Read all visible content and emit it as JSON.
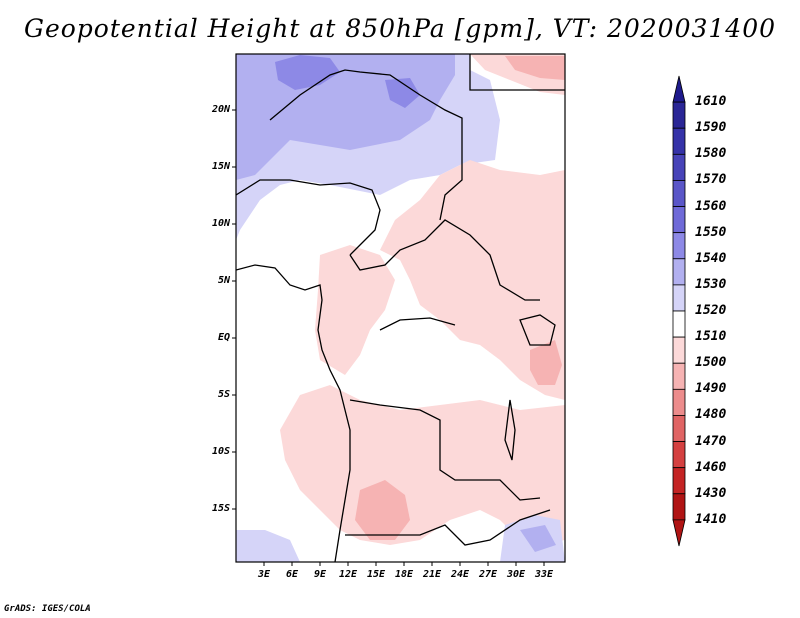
{
  "title": "Geopotential Height at 850hPa [gpm], VT: 2020031400",
  "credit": "GrADS: IGES/COLA",
  "map": {
    "lon_range": [
      0,
      35
    ],
    "lat_range": [
      -20,
      25
    ],
    "x_ticks": [
      "3E",
      "6E",
      "9E",
      "12E",
      "15E",
      "18E",
      "21E",
      "24E",
      "27E",
      "30E",
      "33E"
    ],
    "y_ticks": [
      "20N",
      "15N",
      "10N",
      "5N",
      "EQ",
      "5S",
      "10S",
      "15S"
    ]
  },
  "colorbar": {
    "levels": [
      "1610",
      "1590",
      "1580",
      "1570",
      "1560",
      "1550",
      "1540",
      "1530",
      "1520",
      "1510",
      "1500",
      "1490",
      "1480",
      "1470",
      "1460",
      "1430",
      "1410"
    ],
    "colors": [
      "#1e1a8c",
      "#2a2696",
      "#3532a8",
      "#4743b8",
      "#5a56c8",
      "#6f6ad8",
      "#8d89e6",
      "#b2b0f0",
      "#d5d4f8",
      "#ffffff",
      "#fcd9d9",
      "#f6b3b3",
      "#ec8c8c",
      "#e06464",
      "#d44040",
      "#c42424",
      "#b01414"
    ]
  }
}
